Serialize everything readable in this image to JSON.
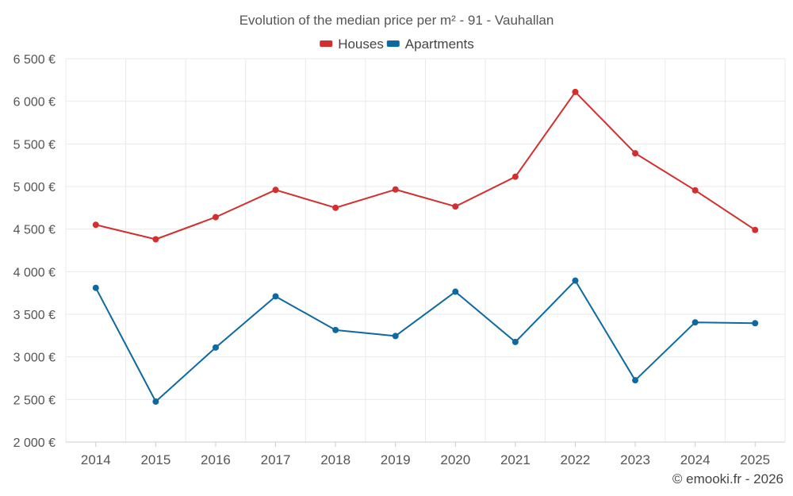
{
  "chart_data": {
    "type": "line",
    "title": "Evolution of the median price per m² - 91 - Vauhallan",
    "xlabel": "",
    "ylabel": "",
    "x": [
      "2014",
      "2015",
      "2016",
      "2017",
      "2018",
      "2019",
      "2020",
      "2021",
      "2022",
      "2023",
      "2024",
      "2025"
    ],
    "ylim": [
      2000,
      6500
    ],
    "yticks": [
      2000,
      2500,
      3000,
      3500,
      4000,
      4500,
      5000,
      5500,
      6000,
      6500
    ],
    "ytick_labels": [
      "2 000 €",
      "2 500 €",
      "3 000 €",
      "3 500 €",
      "4 000 €",
      "4 500 €",
      "5 000 €",
      "5 500 €",
      "6 000 €",
      "6 500 €"
    ],
    "grid": true,
    "legend_position": "top-center",
    "series": [
      {
        "name": "Houses",
        "color": "#d32f2f",
        "values": [
          4550,
          4380,
          4640,
          4960,
          4750,
          4965,
          4765,
          5115,
          6110,
          5390,
          4955,
          4490
        ]
      },
      {
        "name": "Apartments",
        "color": "#0d6aa0",
        "values": [
          3810,
          2475,
          3110,
          3710,
          3315,
          3245,
          3765,
          3175,
          3895,
          2725,
          3405,
          3395
        ]
      }
    ]
  },
  "credit": "© emooki.fr - 2026"
}
